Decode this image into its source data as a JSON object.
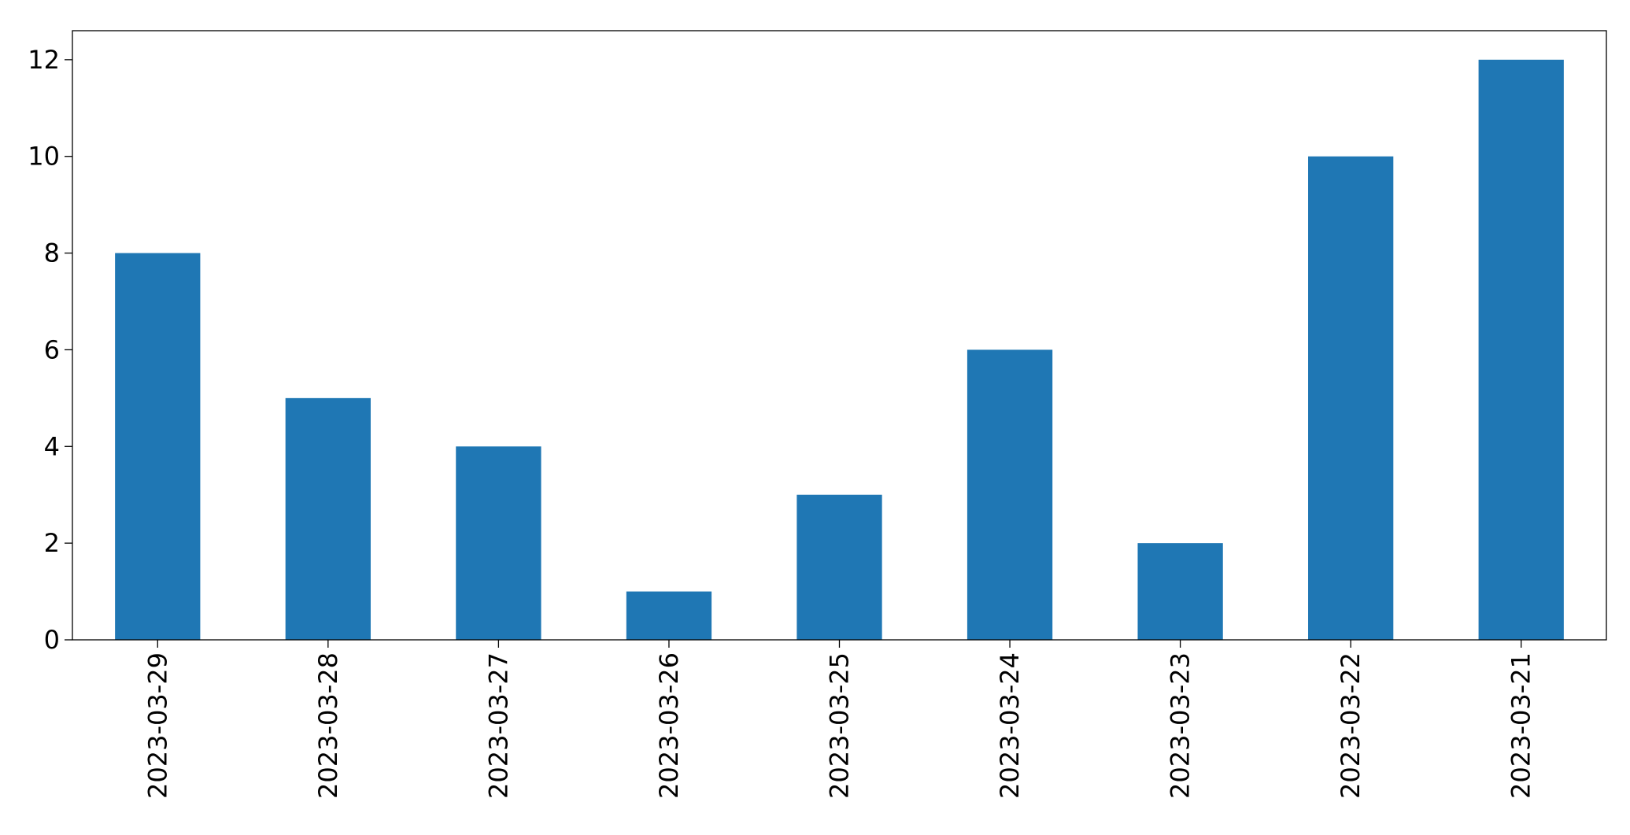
{
  "chart_data": {
    "type": "bar",
    "title": "",
    "xlabel": "",
    "ylabel": "",
    "categories": [
      "2023-03-29",
      "2023-03-28",
      "2023-03-27",
      "2023-03-26",
      "2023-03-25",
      "2023-03-24",
      "2023-03-23",
      "2023-03-22",
      "2023-03-21"
    ],
    "values": [
      8,
      5,
      4,
      1,
      3,
      6,
      2,
      10,
      12
    ],
    "ylim": [
      0,
      12.6
    ],
    "yticks": [
      0,
      2,
      4,
      6,
      8,
      10,
      12
    ],
    "grid": false,
    "legend": "none",
    "bar_color": "#1f77b4"
  }
}
